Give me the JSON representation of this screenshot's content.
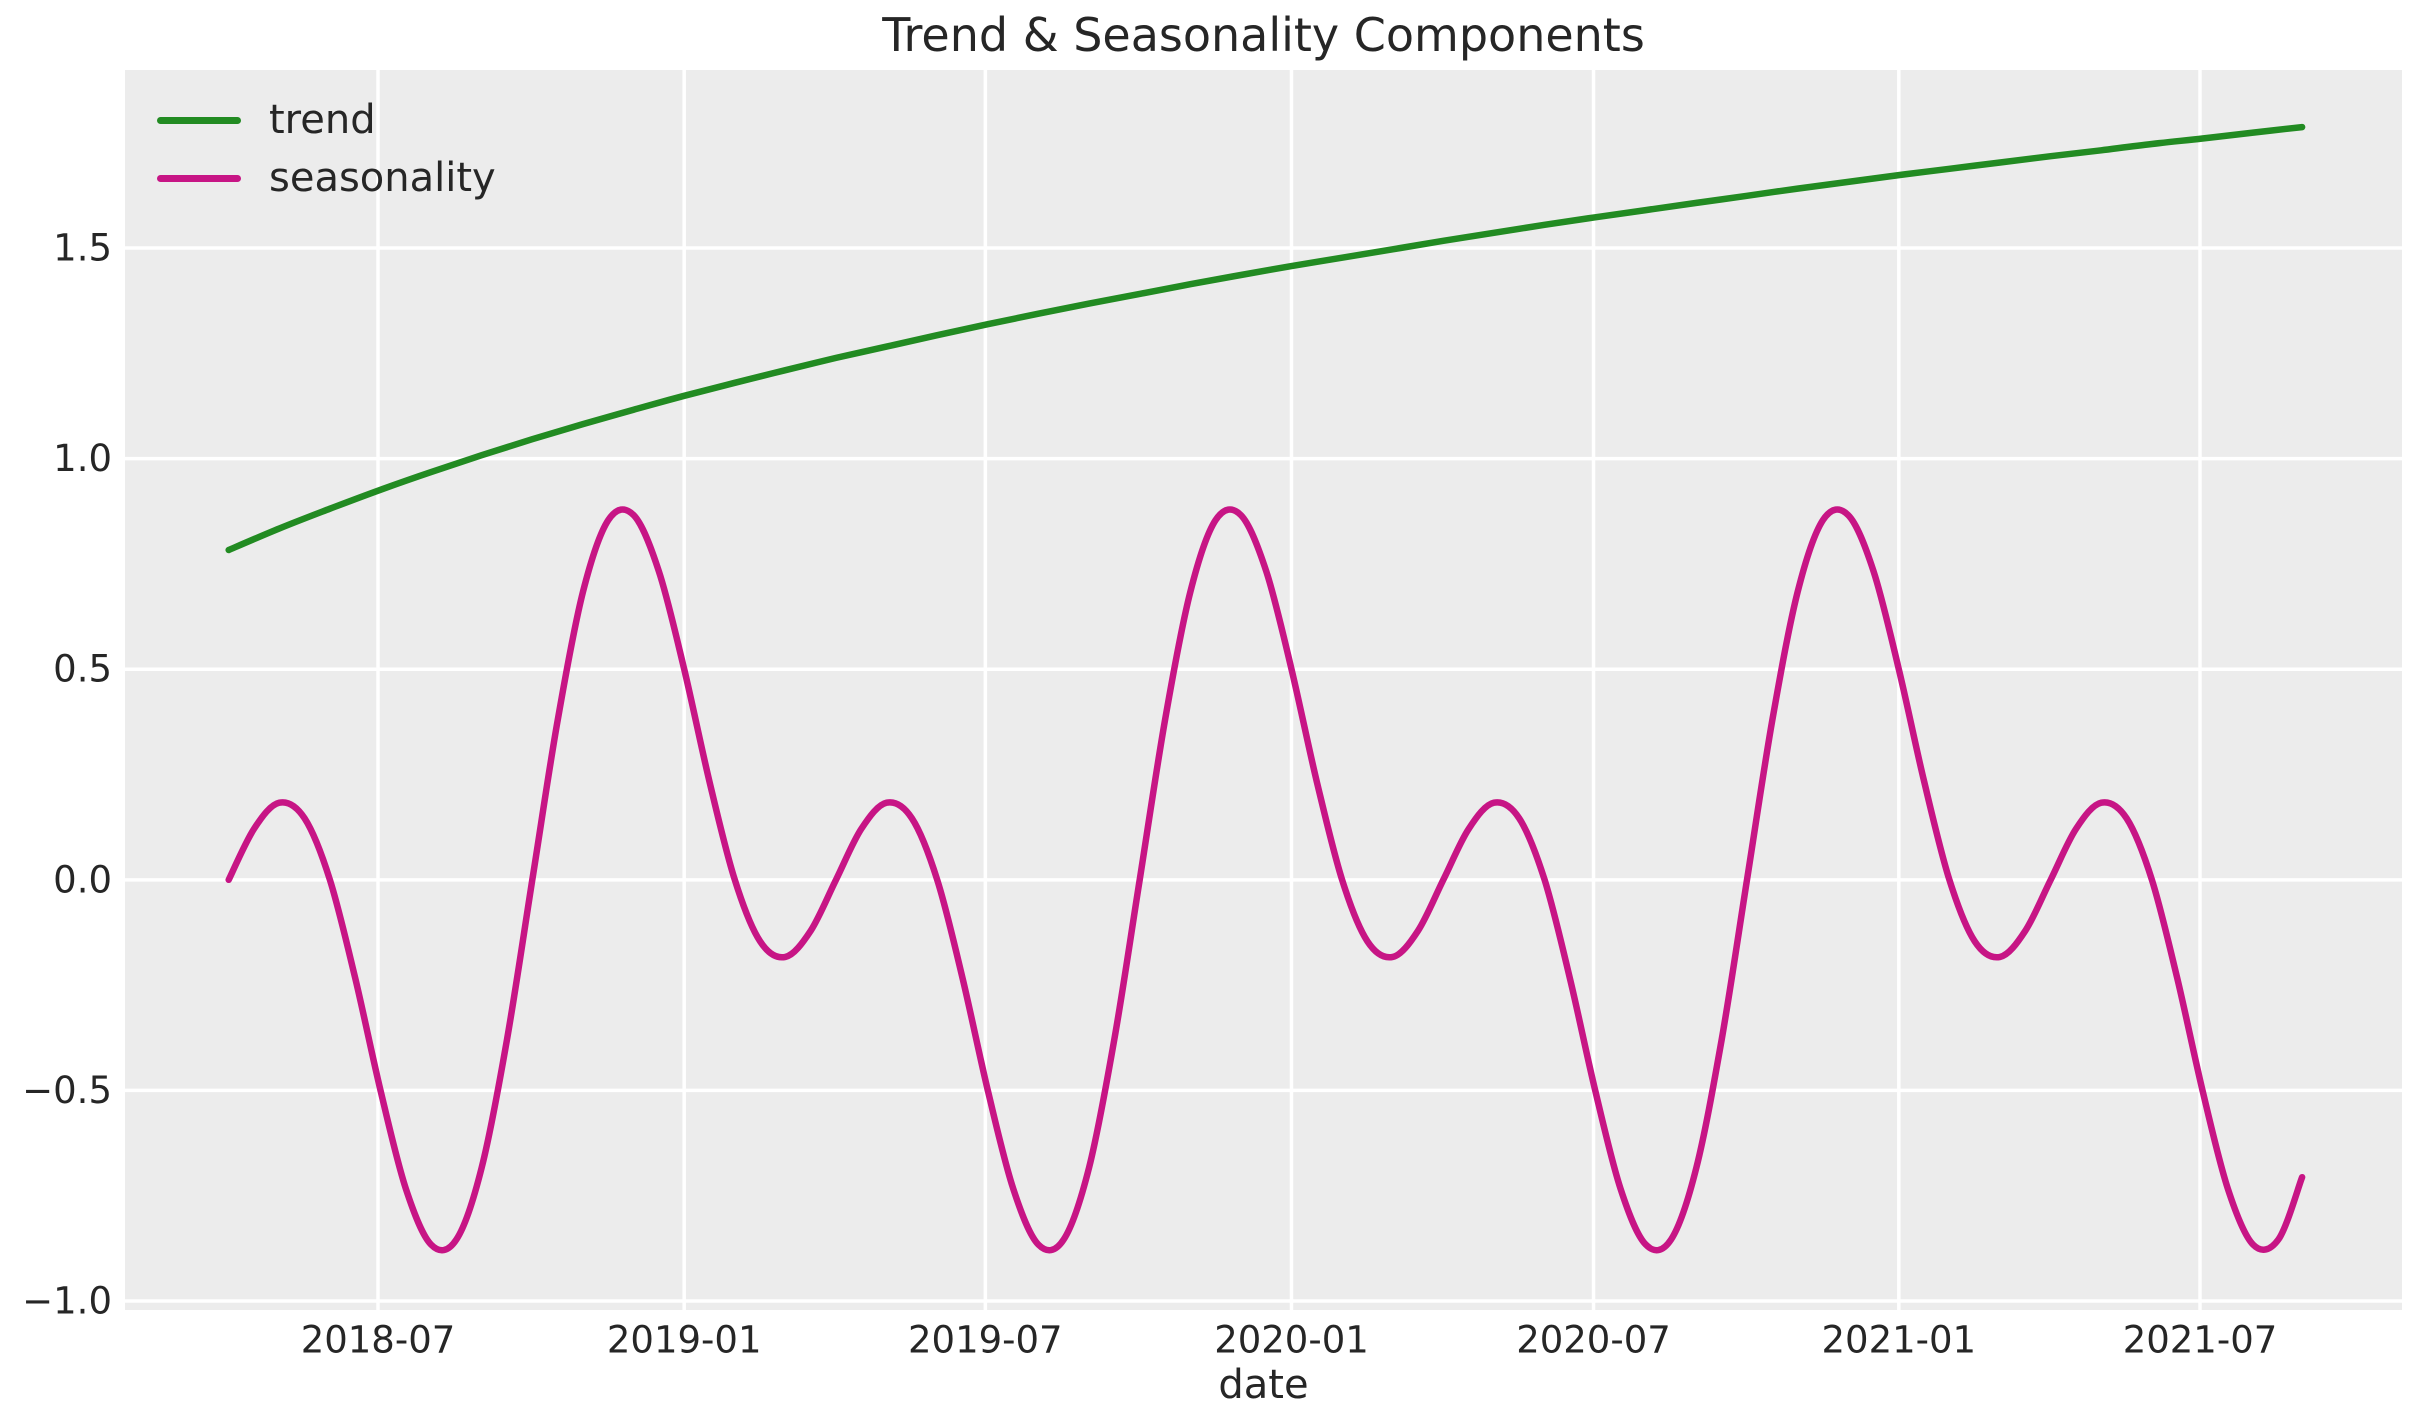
{
  "styles": {
    "figure_background": "#ffffff",
    "axes_background": "#ececec",
    "grid_color": "#ffffff",
    "text_color": "#262626",
    "trend_color": "#228b22",
    "seasonality_color": "#c71585"
  },
  "legend": {
    "items": [
      {
        "label": "trend",
        "color": "#228b22"
      },
      {
        "label": "seasonality",
        "color": "#c71585"
      }
    ]
  },
  "chart_data": {
    "type": "line",
    "title": "Trend & Seasonality Components",
    "xlabel": "date",
    "ylabel": "",
    "grid": true,
    "legend_position": "upper left",
    "xlim": [
      2018.0793,
      2021.8285
    ],
    "ylim": [
      -1.0213,
      1.9226
    ],
    "x_ticks": {
      "values": [
        2018.4959,
        2019.0,
        2019.4959,
        2020.0,
        2020.4973,
        2021.0,
        2021.4959
      ],
      "labels": [
        "2018-07",
        "2019-01",
        "2019-07",
        "2020-01",
        "2020-07",
        "2021-01",
        "2021-07"
      ]
    },
    "y_ticks": {
      "values": [
        -1.0,
        -0.5,
        0.0,
        0.5,
        1.0,
        1.5
      ],
      "labels": [
        "−1.0",
        "−0.5",
        "0.0",
        "0.5",
        "1.0",
        "1.5"
      ]
    },
    "series": [
      {
        "name": "trend",
        "color": "#228b22",
        "x": [
          2018.25,
          2018.3333,
          2018.4167,
          2018.5,
          2018.5833,
          2018.6667,
          2018.75,
          2018.8333,
          2018.9167,
          2019.0,
          2019.0833,
          2019.1667,
          2019.25,
          2019.3333,
          2019.4167,
          2019.5,
          2019.5833,
          2019.6667,
          2019.75,
          2019.8333,
          2019.9167,
          2020.0,
          2020.0833,
          2020.1667,
          2020.25,
          2020.3333,
          2020.4167,
          2020.5,
          2020.5833,
          2020.6667,
          2020.75,
          2020.8333,
          2020.9167,
          2021.0,
          2021.0833,
          2021.1667,
          2021.25,
          2021.3333,
          2021.4167,
          2021.5,
          2021.5833,
          2021.664
        ],
        "y": [
          0.783,
          0.834,
          0.881,
          0.926,
          0.968,
          1.008,
          1.046,
          1.082,
          1.116,
          1.149,
          1.18,
          1.21,
          1.239,
          1.266,
          1.293,
          1.319,
          1.344,
          1.368,
          1.391,
          1.414,
          1.436,
          1.457,
          1.477,
          1.497,
          1.517,
          1.536,
          1.555,
          1.573,
          1.59,
          1.607,
          1.624,
          1.641,
          1.657,
          1.673,
          1.688,
          1.703,
          1.718,
          1.732,
          1.747,
          1.76,
          1.774,
          1.787
        ]
      },
      {
        "name": "seasonality",
        "color": "#c71585",
        "x": [
          2018.25,
          2018.2917,
          2018.3333,
          2018.375,
          2018.4167,
          2018.4583,
          2018.5,
          2018.5417,
          2018.5833,
          2018.625,
          2018.6667,
          2018.7083,
          2018.75,
          2018.7917,
          2018.8333,
          2018.875,
          2018.9167,
          2018.9583,
          2019.0,
          2019.0417,
          2019.0833,
          2019.125,
          2019.1667,
          2019.2083,
          2019.25,
          2019.2917,
          2019.3333,
          2019.375,
          2019.4167,
          2019.4583,
          2019.5,
          2019.5417,
          2019.5833,
          2019.625,
          2019.6667,
          2019.7083,
          2019.75,
          2019.7917,
          2019.8333,
          2019.875,
          2019.9167,
          2019.9583,
          2020.0,
          2020.0417,
          2020.0833,
          2020.125,
          2020.1667,
          2020.2083,
          2020.25,
          2020.2917,
          2020.3333,
          2020.375,
          2020.4167,
          2020.4583,
          2020.5,
          2020.5417,
          2020.5833,
          2020.625,
          2020.6667,
          2020.7083,
          2020.75,
          2020.7917,
          2020.8333,
          2020.875,
          2020.9167,
          2020.9583,
          2021.0,
          2021.0417,
          2021.0833,
          2021.125,
          2021.1667,
          2021.2083,
          2021.25,
          2021.2917,
          2021.3333,
          2021.375,
          2021.4167,
          2021.4583,
          2021.5,
          2021.5417,
          2021.5833,
          2021.625,
          2021.664
        ],
        "y": [
          0,
          0.121,
          0.183,
          0.146,
          0,
          -0.233,
          -0.5,
          -0.733,
          -0.866,
          -0.854,
          -0.683,
          -0.379,
          0,
          0.379,
          0.683,
          0.854,
          0.866,
          0.733,
          0.5,
          0.233,
          0,
          -0.146,
          -0.183,
          -0.121,
          0,
          0.121,
          0.183,
          0.146,
          0,
          -0.233,
          -0.5,
          -0.733,
          -0.866,
          -0.854,
          -0.683,
          -0.379,
          0,
          0.379,
          0.683,
          0.854,
          0.866,
          0.733,
          0.5,
          0.233,
          0,
          -0.146,
          -0.183,
          -0.121,
          0,
          0.121,
          0.183,
          0.146,
          0,
          -0.233,
          -0.5,
          -0.733,
          -0.866,
          -0.854,
          -0.683,
          -0.379,
          0,
          0.379,
          0.683,
          0.854,
          0.866,
          0.733,
          0.5,
          0.233,
          0,
          -0.146,
          -0.183,
          -0.121,
          0,
          0.121,
          0.183,
          0.146,
          0,
          -0.233,
          -0.5,
          -0.733,
          -0.866,
          -0.854,
          -0.706
        ]
      }
    ]
  }
}
